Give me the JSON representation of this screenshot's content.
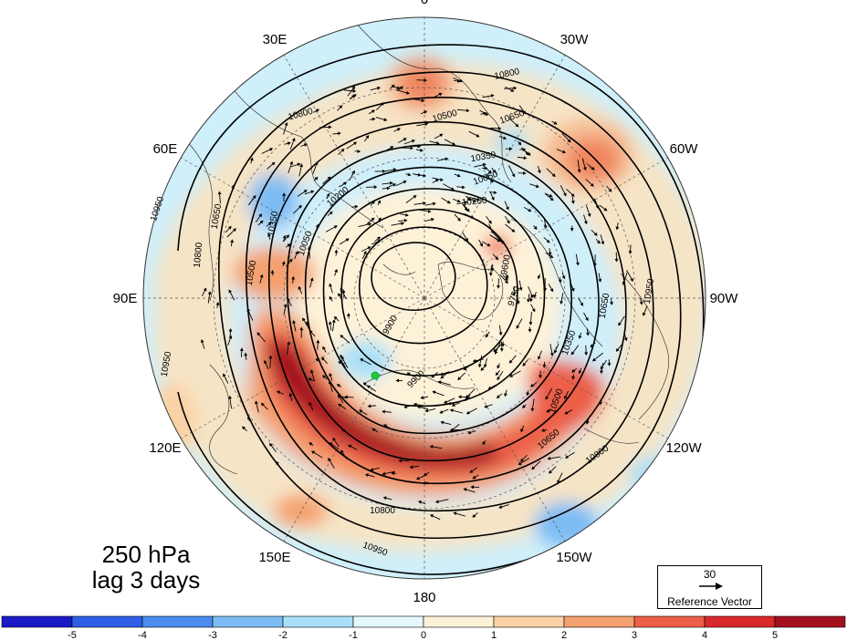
{
  "title": {
    "line1": "250 hPa",
    "line2": "lag 3 days"
  },
  "longitude_labels": [
    {
      "text": "0",
      "lon": 0
    },
    {
      "text": "30W",
      "lon": -30
    },
    {
      "text": "60W",
      "lon": -60
    },
    {
      "text": "90W",
      "lon": -90
    },
    {
      "text": "120W",
      "lon": -120
    },
    {
      "text": "150W",
      "lon": -150
    },
    {
      "text": "180",
      "lon": 180
    },
    {
      "text": "150E",
      "lon": 150
    },
    {
      "text": "120E",
      "lon": 120
    },
    {
      "text": "90E",
      "lon": 90
    },
    {
      "text": "60E",
      "lon": 60
    },
    {
      "text": "30E",
      "lon": 30
    }
  ],
  "contour_labels": [
    "10800",
    "10650",
    "10500",
    "10950",
    "10350",
    "10050",
    "10200",
    "9900",
    "9750",
    "9600",
    "10800",
    "10950",
    "10650",
    "10500",
    "10800",
    "10650",
    "10200",
    "10350",
    "10050",
    "9900",
    "10500",
    "10350",
    "10650",
    "10950",
    "10800",
    "10800",
    "10950"
  ],
  "reference_vector": {
    "value": "30",
    "label": "Reference Vector"
  },
  "colorbar": {
    "ticks": [
      "-5",
      "-4",
      "-3",
      "-2",
      "-1",
      "0",
      "1",
      "2",
      "3",
      "4",
      "5"
    ],
    "colors": [
      "#1a1ac8",
      "#2e5fe6",
      "#4a8cf0",
      "#7cbcf4",
      "#a8e0f8",
      "#e4f8fc",
      "#fdf2d8",
      "#fbd2a4",
      "#f4a070",
      "#ec5e48",
      "#d8282c",
      "#a4101e"
    ]
  },
  "marker_color": "#22cc22"
}
